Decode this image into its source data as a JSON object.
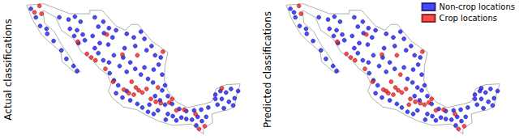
{
  "map_outline": {
    "lon": [
      -117.1,
      -114.7,
      -111.0,
      -108.2,
      -108.2,
      -106.5,
      -104.5,
      -103.2,
      -102.4,
      -101.4,
      -99.5,
      -97.2,
      -97.6,
      -97.7,
      -97.2,
      -96.0,
      -94.5,
      -92.5,
      -91.0,
      -90.4,
      -89.0,
      -87.0,
      -87.5,
      -87.8,
      -88.9,
      -89.2,
      -91.0,
      -90.9,
      -92.2,
      -92.2,
      -93.9,
      -96.5,
      -98.5,
      -100.0,
      -101.6,
      -103.5,
      -105.0,
      -105.6,
      -105.2,
      -105.7,
      -106.8,
      -108.0,
      -109.4,
      -110.5,
      -112.2,
      -113.0,
      -114.8,
      -114.6,
      -113.2,
      -112.2,
      -110.8,
      -110.3,
      -109.5,
      -110.2,
      -112.1,
      -112.3,
      -114.2,
      -115.0,
      -116.3,
      -117.1
    ],
    "lat": [
      32.5,
      32.7,
      31.3,
      31.3,
      31.8,
      31.8,
      29.6,
      29.0,
      29.8,
      29.8,
      27.5,
      25.9,
      24.0,
      22.0,
      20.5,
      19.0,
      18.2,
      18.6,
      19.0,
      20.8,
      21.4,
      21.5,
      20.0,
      18.3,
      17.8,
      17.8,
      17.3,
      16.1,
      15.2,
      14.5,
      15.9,
      15.7,
      16.3,
      17.0,
      17.9,
      18.3,
      19.5,
      20.5,
      21.5,
      22.8,
      23.6,
      25.0,
      26.0,
      27.8,
      29.0,
      30.8,
      31.8,
      30.0,
      28.8,
      27.0,
      25.0,
      24.0,
      23.2,
      23.0,
      24.6,
      26.0,
      27.6,
      28.4,
      30.5,
      32.5
    ]
  },
  "chart_data": [
    {
      "type": "scatter",
      "ylabel": "Actual classifications",
      "xlim": [
        -118,
        -86
      ],
      "ylim": [
        14,
        33
      ],
      "tick_labels": false,
      "series": [
        {
          "name": "Non-crop locations",
          "color": "#1a1aff",
          "x": [
            -116.5,
            -115.8,
            -115.2,
            -114.2,
            -113.3,
            -112.2,
            -111.5,
            -110.5,
            -110.0,
            -114.3,
            -112.5,
            -111.2,
            -110.3,
            -109.5,
            -111.0,
            -110.0,
            -109.2,
            -110.4,
            -109.8,
            -108.9,
            -107.5,
            -106.3,
            -105.5,
            -107.0,
            -106.2,
            -107.8,
            -105.0,
            -104.5,
            -106.8,
            -105.6,
            -107.5,
            -103.0,
            -102.0,
            -101.0,
            -100.5,
            -101.8,
            -103.3,
            -100.2,
            -99.5,
            -99.0,
            -98.2,
            -98.5,
            -99.2,
            -98.0,
            -104.8,
            -105.5,
            -104.0,
            -103.5,
            -102.5,
            -103.0,
            -101.8,
            -101.0,
            -100.5,
            -100.0,
            -99.3,
            -107.0,
            -106.3,
            -105.4,
            -104.8,
            -104.2,
            -104.5,
            -103.6,
            -103.0,
            -102.5,
            -101.5,
            -100.8,
            -100.0,
            -99.2,
            -98.6,
            -99.8,
            -99.0,
            -98.3,
            -97.6,
            -97.2,
            -98.0,
            -97.6,
            -97.2,
            -96.5,
            -96.0,
            -97.5,
            -95.3,
            -94.6,
            -93.8,
            -93.0,
            -92.4,
            -91.8,
            -93.2,
            -96.6,
            -95.6,
            -94.6,
            -93.5,
            -92.5,
            -91.5,
            -90.5,
            -90.2,
            -89.6,
            -89.0,
            -88.3,
            -88.6,
            -89.8,
            -87.8,
            -88.0,
            -89.3,
            -90.5,
            -87.3
          ],
          "values": [
            32.0,
            30.8,
            29.6,
            28.5,
            27.5,
            26.2,
            25.0,
            24.0,
            23.3,
            29.2,
            30.8,
            30.5,
            30.9,
            30.2,
            29.2,
            29.0,
            28.4,
            28.2,
            27.2,
            27.6,
            30.8,
            30.2,
            29.3,
            29.5,
            28.6,
            28.2,
            28.0,
            29.0,
            27.2,
            27.0,
            26.5,
            28.5,
            28.0,
            28.8,
            27.8,
            26.8,
            26.5,
            26.2,
            26.8,
            25.5,
            25.2,
            24.2,
            23.5,
            22.8,
            25.5,
            24.5,
            24.0,
            25.2,
            24.5,
            23.2,
            23.6,
            22.8,
            23.8,
            22.2,
            21.7,
            25.8,
            24.8,
            23.0,
            22.0,
            21.3,
            20.2,
            19.6,
            20.5,
            19.2,
            18.7,
            18.2,
            17.6,
            17.3,
            17.8,
            18.6,
            19.8,
            19.2,
            18.6,
            19.8,
            20.6,
            21.3,
            17.3,
            17.0,
            16.4,
            16.5,
            16.8,
            16.6,
            16.5,
            16.9,
            16.3,
            16.9,
            15.7,
            18.7,
            18.0,
            17.7,
            17.8,
            17.9,
            18.2,
            19.4,
            18.6,
            19.4,
            20.3,
            20.8,
            19.0,
            20.5,
            19.5,
            18.5,
            18.1,
            20.0,
            20.5
          ]
        },
        {
          "name": "Crop locations",
          "color": "#ff1a1a",
          "x": [
            -115.3,
            -115.0,
            -116.0,
            -109.9,
            -108.6,
            -108.0,
            -107.4,
            -106.0,
            -104.9,
            -103.4,
            -102.7,
            -102.0,
            -101.3,
            -101.7,
            -100.8,
            -100.2,
            -102.3,
            -99.6,
            -98.9,
            -98.2,
            -97.0,
            -96.6,
            -96.0,
            -94.9,
            -93.3,
            -92.8,
            -92.0,
            -101.5,
            -103.6,
            -97.9,
            -98.6,
            -105.8,
            -89.6
          ],
          "values": [
            32.4,
            31.3,
            31.5,
            27.4,
            25.7,
            25.2,
            24.8,
            23.6,
            21.8,
            20.7,
            20.2,
            20.0,
            20.6,
            21.0,
            20.3,
            20.8,
            21.8,
            19.4,
            19.0,
            18.8,
            18.9,
            19.4,
            17.8,
            17.9,
            17.3,
            15.2,
            15.6,
            25.5,
            25.6,
            26.0,
            21.0,
            28.4,
            20.9
          ]
        }
      ]
    },
    {
      "type": "scatter",
      "ylabel": "Predicted classifications",
      "xlim": [
        -118,
        -86
      ],
      "ylim": [
        14,
        33
      ],
      "tick_labels": false,
      "legend": "upper right",
      "series": [
        {
          "name": "Non-crop locations",
          "color": "#1a1aff",
          "x": [
            -116.5,
            -115.8,
            -115.2,
            -114.2,
            -113.3,
            -112.2,
            -111.5,
            -110.5,
            -110.0,
            -114.3,
            -112.5,
            -111.2,
            -110.3,
            -109.5,
            -111.0,
            -110.0,
            -109.2,
            -110.4,
            -109.8,
            -108.9,
            -107.5,
            -106.3,
            -105.5,
            -107.0,
            -106.2,
            -107.8,
            -105.0,
            -104.5,
            -106.8,
            -105.6,
            -107.5,
            -103.0,
            -102.0,
            -101.0,
            -100.5,
            -101.8,
            -103.3,
            -100.2,
            -99.5,
            -99.0,
            -98.2,
            -98.5,
            -99.2,
            -98.0,
            -104.8,
            -105.5,
            -104.0,
            -103.5,
            -102.5,
            -103.0,
            -101.8,
            -100.5,
            -100.0,
            -99.3,
            -107.0,
            -106.3,
            -105.4,
            -104.8,
            -104.2,
            -104.5,
            -103.6,
            -102.5,
            -101.5,
            -100.8,
            -100.0,
            -99.2,
            -98.6,
            -99.0,
            -98.3,
            -97.2,
            -98.0,
            -97.6,
            -97.2,
            -96.5,
            -96.0,
            -97.5,
            -95.3,
            -94.6,
            -93.8,
            -93.0,
            -92.4,
            -91.8,
            -93.2,
            -96.6,
            -95.6,
            -94.6,
            -93.5,
            -92.5,
            -91.5,
            -90.5,
            -90.2,
            -89.6,
            -89.0,
            -88.3,
            -88.6,
            -89.8,
            -87.8,
            -88.0,
            -89.3,
            -90.5,
            -87.3,
            -116.0,
            -98.6,
            -89.6
          ],
          "values": [
            32.0,
            30.8,
            29.6,
            28.5,
            27.5,
            26.2,
            25.0,
            24.0,
            23.3,
            29.2,
            30.8,
            30.5,
            30.9,
            30.2,
            29.2,
            29.0,
            28.4,
            28.2,
            27.2,
            27.6,
            30.8,
            30.2,
            29.3,
            29.5,
            28.6,
            28.2,
            28.0,
            29.0,
            27.2,
            27.0,
            26.5,
            28.5,
            28.0,
            28.8,
            27.8,
            26.8,
            26.5,
            26.2,
            26.8,
            25.5,
            25.2,
            24.2,
            23.5,
            22.8,
            25.5,
            24.5,
            24.0,
            25.2,
            24.5,
            23.2,
            23.6,
            23.8,
            22.2,
            21.7,
            25.8,
            24.8,
            23.0,
            22.0,
            21.3,
            20.2,
            19.6,
            19.2,
            18.7,
            18.2,
            17.6,
            17.3,
            17.8,
            19.8,
            19.2,
            19.8,
            20.6,
            21.3,
            17.3,
            17.0,
            16.4,
            16.5,
            16.8,
            16.6,
            16.5,
            16.9,
            16.3,
            16.9,
            15.7,
            18.7,
            18.0,
            17.7,
            17.8,
            17.9,
            18.2,
            19.4,
            18.6,
            19.4,
            20.3,
            20.8,
            19.0,
            20.5,
            19.5,
            18.5,
            18.1,
            20.0,
            20.5,
            31.5,
            21.0,
            20.9
          ]
        },
        {
          "name": "Crop locations",
          "color": "#ff1a1a",
          "x": [
            -115.3,
            -115.0,
            -109.9,
            -108.6,
            -108.0,
            -107.4,
            -106.0,
            -104.9,
            -103.4,
            -102.7,
            -102.0,
            -101.3,
            -101.7,
            -100.8,
            -100.2,
            -102.3,
            -99.6,
            -98.9,
            -98.2,
            -97.0,
            -96.6,
            -96.0,
            -94.9,
            -93.3,
            -92.8,
            -92.0,
            -101.5,
            -103.6,
            -97.9,
            -105.8,
            -101.0,
            -103.0,
            -97.6,
            -99.8
          ],
          "values": [
            32.4,
            31.3,
            27.4,
            25.7,
            25.2,
            24.8,
            23.6,
            21.8,
            20.7,
            20.2,
            20.0,
            20.6,
            21.0,
            20.3,
            20.8,
            21.8,
            19.4,
            19.0,
            18.8,
            18.9,
            19.4,
            17.8,
            17.9,
            17.3,
            15.2,
            15.6,
            25.5,
            25.6,
            26.0,
            28.4,
            22.8,
            20.5,
            18.6,
            18.6
          ]
        }
      ]
    }
  ]
}
